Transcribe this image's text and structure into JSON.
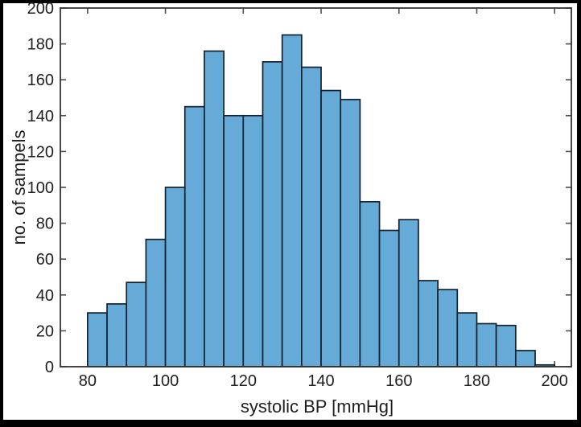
{
  "window": {
    "frame_color": "#000000",
    "canvas_background": "#ffffff"
  },
  "chart_data": {
    "type": "bar",
    "subtype": "histogram",
    "title": "",
    "xlabel": "systolic BP [mmHg]",
    "ylabel": "no. of sampels",
    "bin_width": 5,
    "bin_edges": [
      80,
      85,
      90,
      95,
      100,
      105,
      110,
      115,
      120,
      125,
      130,
      135,
      140,
      145,
      150,
      155,
      160,
      165,
      170,
      175,
      180,
      185,
      190,
      195,
      200
    ],
    "values": [
      30,
      35,
      47,
      71,
      100,
      145,
      176,
      140,
      140,
      170,
      185,
      167,
      154,
      149,
      92,
      76,
      82,
      48,
      43,
      30,
      24,
      23,
      9,
      1
    ],
    "x_ticks": [
      80,
      100,
      120,
      140,
      160,
      180,
      200
    ],
    "y_ticks": [
      0,
      20,
      40,
      60,
      80,
      100,
      120,
      140,
      160,
      180,
      200
    ],
    "xlim": [
      73,
      204.3
    ],
    "ylim": [
      0,
      200
    ],
    "grid": false,
    "legend": null,
    "box": true,
    "tick_direction": "in",
    "colors": {
      "bar_fill": "#66aad7",
      "bar_edge": "#14222f",
      "axis": "#333333",
      "tick": "#4d4d4d",
      "text": "#1f1f1f"
    }
  }
}
